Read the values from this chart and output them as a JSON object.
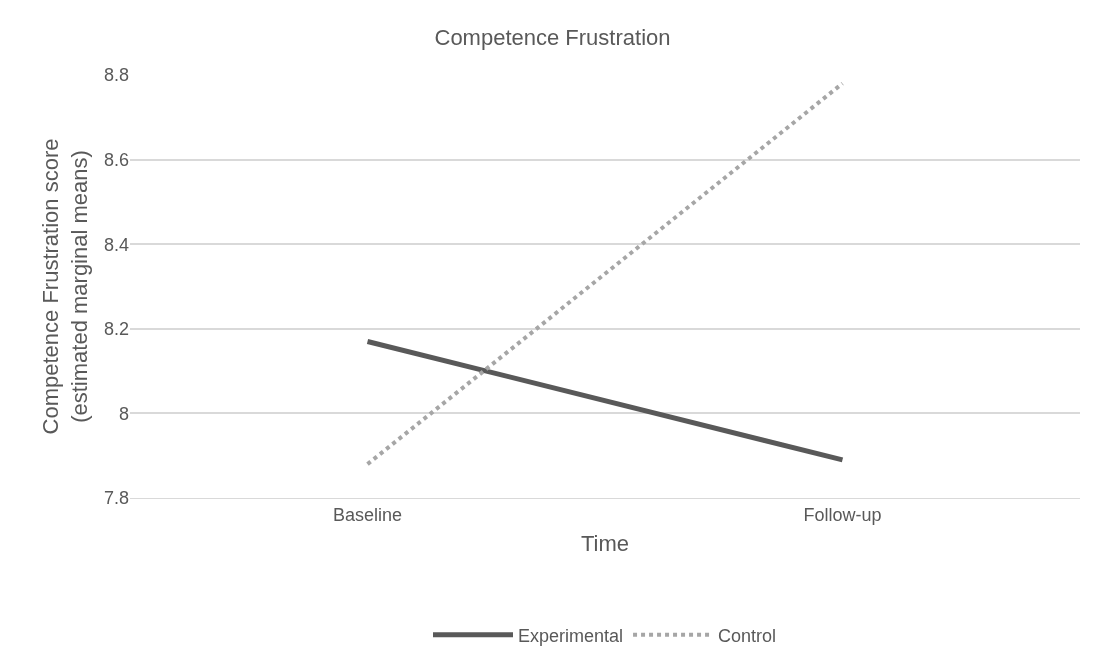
{
  "chart_data": {
    "type": "line",
    "title": "Competence Frustration",
    "xlabel": "Time",
    "ylabel": "Competence Frustration score\n(estimated marginal means)",
    "categories": [
      "Baseline",
      "Follow-up"
    ],
    "series": [
      {
        "name": "Experimental",
        "color": "#595959",
        "values": [
          8.17,
          7.89
        ],
        "line_style": "solid"
      },
      {
        "name": "Control",
        "color": "#a6a6a6",
        "values": [
          7.88,
          8.78
        ],
        "line_style": "dotted"
      }
    ],
    "ylim": [
      7.8,
      8.8
    ],
    "yticks": [
      7.8,
      8,
      8.2,
      8.4,
      8.6,
      8.8
    ],
    "grid": "y",
    "legend": "bottom",
    "marker": "none"
  }
}
